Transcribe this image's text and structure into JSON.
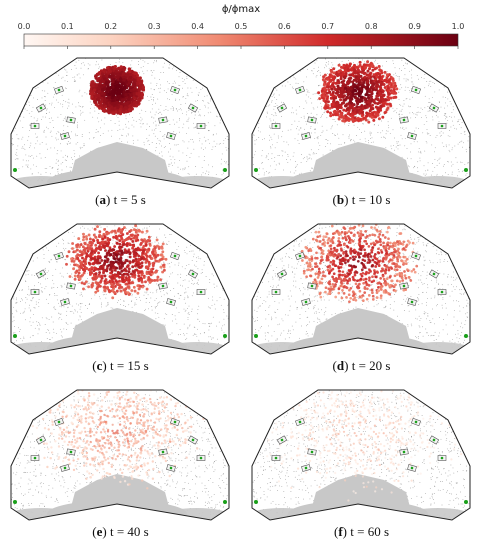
{
  "colorbar": {
    "title": "ϕ/ϕmax",
    "ticks": [
      "0.0",
      "0.1",
      "0.2",
      "0.3",
      "0.4",
      "0.5",
      "0.6",
      "0.7",
      "0.8",
      "0.9",
      "1.0"
    ],
    "color_low": "#fff7f3",
    "color_high": "#6b0012"
  },
  "panels": [
    {
      "label": "a",
      "time_text": "t = 5 s",
      "plume_spread": 0.0,
      "plume_intensity": 1.0
    },
    {
      "label": "b",
      "time_text": "t = 10 s",
      "plume_spread": 0.2,
      "plume_intensity": 0.95
    },
    {
      "label": "c",
      "time_text": "t = 15 s",
      "plume_spread": 0.35,
      "plume_intensity": 0.9
    },
    {
      "label": "d",
      "time_text": "t = 20 s",
      "plume_spread": 0.5,
      "plume_intensity": 0.85
    },
    {
      "label": "e",
      "time_text": "t = 40 s",
      "plume_spread": 0.8,
      "plume_intensity": 0.45
    },
    {
      "label": "f",
      "time_text": "t = 60 s",
      "plume_spread": 1.0,
      "plume_intensity": 0.25
    }
  ],
  "colors": {
    "mesh_dot": "#8a8a8a",
    "occupant_fill": "#c8c8c8",
    "marker": "#1aa01a",
    "outline": "#222222"
  }
}
